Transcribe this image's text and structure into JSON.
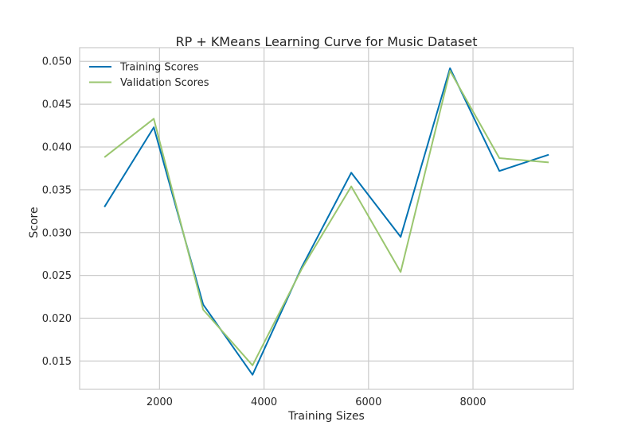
{
  "chart_data": {
    "type": "line",
    "title": "RP + KMeans Learning Curve for Music Dataset",
    "xlabel": "Training Sizes",
    "ylabel": "Score",
    "xlim": [
      470,
      9920
    ],
    "ylim": [
      0.0117,
      0.0516
    ],
    "xticks": [
      2000,
      4000,
      6000,
      8000
    ],
    "xtick_labels": [
      "2000",
      "4000",
      "6000",
      "8000"
    ],
    "yticks": [
      0.015,
      0.02,
      0.025,
      0.03,
      0.035,
      0.04,
      0.045,
      0.05
    ],
    "ytick_labels": [
      "0.015",
      "0.020",
      "0.025",
      "0.030",
      "0.035",
      "0.040",
      "0.045",
      "0.050"
    ],
    "grid": true,
    "legend_position": "top-left",
    "x": [
      945,
      1890,
      2835,
      3780,
      4725,
      5670,
      6615,
      7560,
      8505,
      9450
    ],
    "series": [
      {
        "name": "Training Scores",
        "color": "#0072b2",
        "values": [
          0.033,
          0.0423,
          0.0216,
          0.0134,
          0.026,
          0.037,
          0.0295,
          0.0492,
          0.0372,
          0.0391
        ]
      },
      {
        "name": "Validation Scores",
        "color": "#9ac66f",
        "values": [
          0.0388,
          0.0433,
          0.021,
          0.0145,
          0.0258,
          0.0354,
          0.0254,
          0.0489,
          0.0387,
          0.0382
        ]
      }
    ]
  }
}
